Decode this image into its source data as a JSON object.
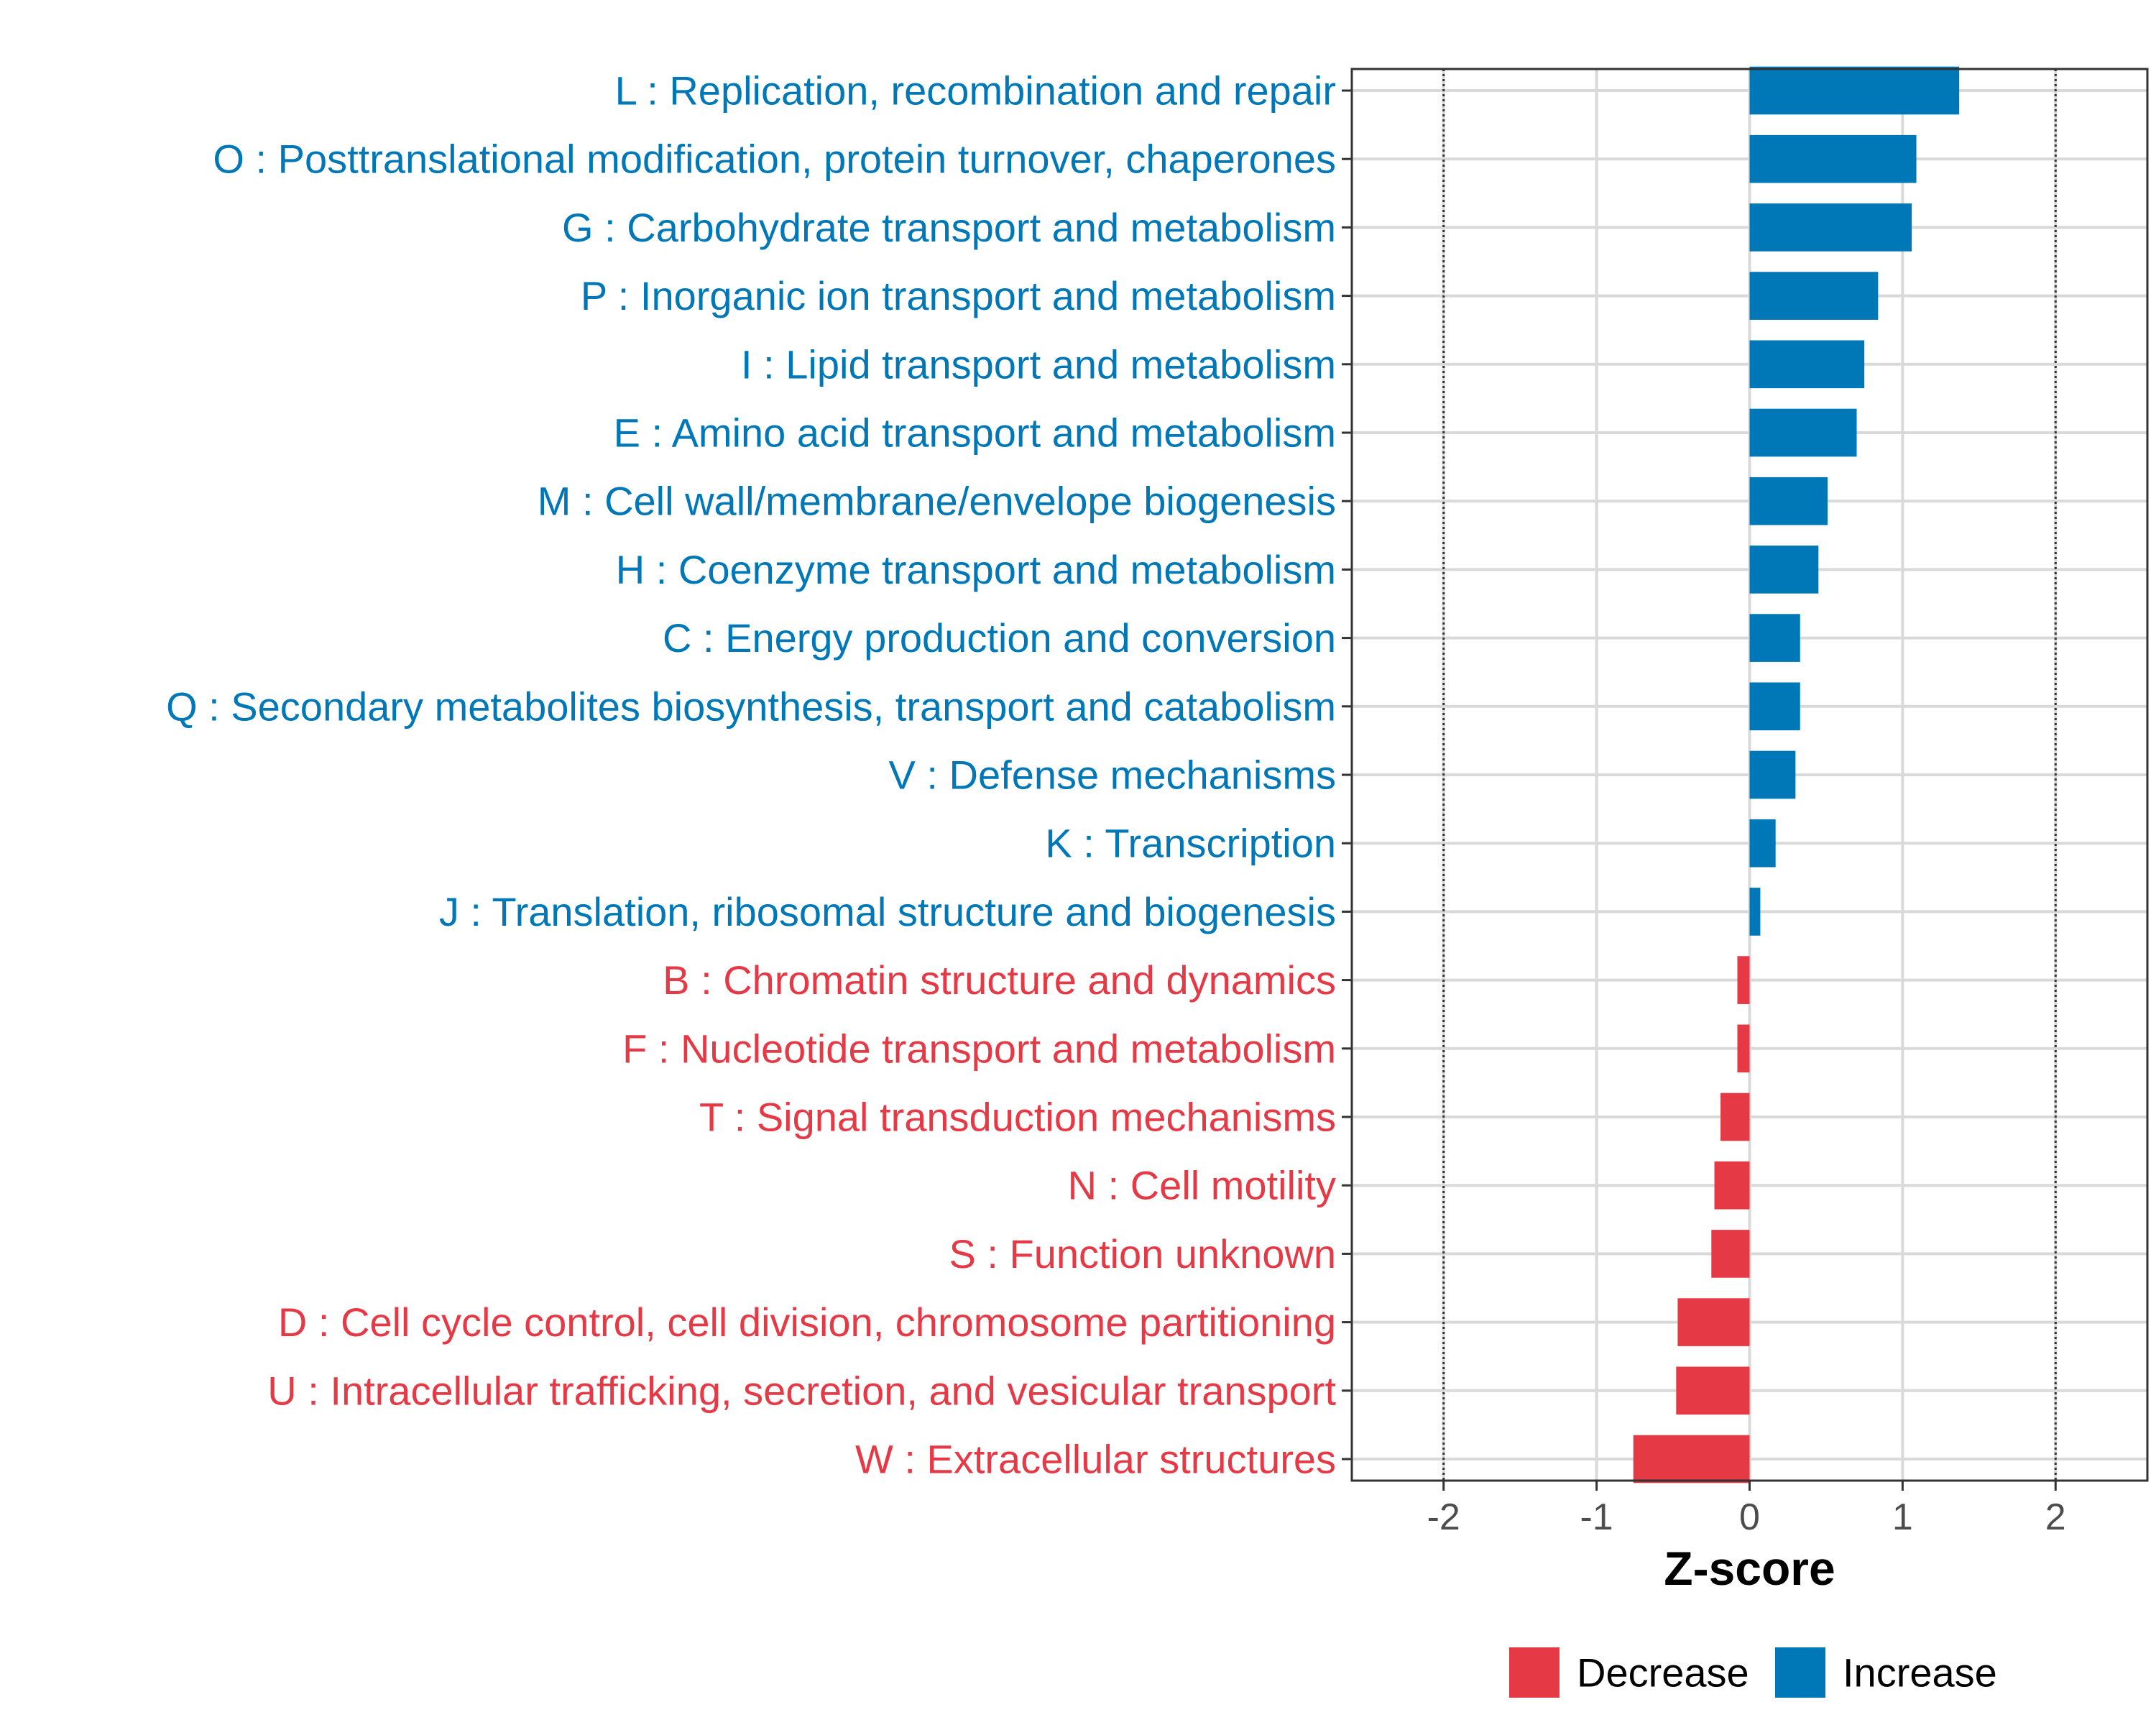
{
  "chart_data": {
    "type": "bar",
    "orientation": "horizontal",
    "xlabel": "Z-score",
    "ylabel": "",
    "xlim": [
      -2.6,
      2.6
    ],
    "xticks": [
      -2,
      -1,
      0,
      1,
      2
    ],
    "xtick_labels": [
      "-2",
      "-1",
      "0",
      "1",
      "2"
    ],
    "reference_lines": [
      -2,
      2
    ],
    "grid": true,
    "legend_position": "bottom",
    "colors": {
      "Decrease": "#e63946",
      "Increase": "#0077b6"
    },
    "legend": [
      {
        "name": "Decrease",
        "color": "#e63946"
      },
      {
        "name": "Increase",
        "color": "#0077b6"
      }
    ],
    "categories": [
      "L : Replication, recombination and repair",
      "O : Posttranslational modification, protein turnover, chaperones",
      "G : Carbohydrate transport and metabolism",
      "P : Inorganic ion transport and metabolism",
      "I : Lipid transport and metabolism",
      "E : Amino acid transport and metabolism",
      "M : Cell wall/membrane/envelope biogenesis",
      "H : Coenzyme transport and metabolism",
      "C : Energy production and conversion",
      "Q : Secondary metabolites biosynthesis, transport and catabolism",
      "V : Defense mechanisms",
      "K : Transcription",
      "J : Translation, ribosomal structure and biogenesis",
      "B : Chromatin structure and dynamics",
      "F : Nucleotide transport and metabolism",
      "T : Signal transduction mechanisms",
      "N : Cell motility",
      "S : Function unknown",
      "D : Cell cycle control, cell division, chromosome partitioning",
      "U : Intracellular trafficking, secretion, and vesicular transport",
      "W : Extracellular structures"
    ],
    "values": [
      1.37,
      1.09,
      1.06,
      0.84,
      0.75,
      0.7,
      0.51,
      0.45,
      0.33,
      0.33,
      0.3,
      0.17,
      0.07,
      -0.08,
      -0.08,
      -0.19,
      -0.23,
      -0.25,
      -0.47,
      -0.48,
      -0.76
    ],
    "direction": [
      "Increase",
      "Increase",
      "Increase",
      "Increase",
      "Increase",
      "Increase",
      "Increase",
      "Increase",
      "Increase",
      "Increase",
      "Increase",
      "Increase",
      "Increase",
      "Decrease",
      "Decrease",
      "Decrease",
      "Decrease",
      "Decrease",
      "Decrease",
      "Decrease",
      "Decrease"
    ]
  }
}
